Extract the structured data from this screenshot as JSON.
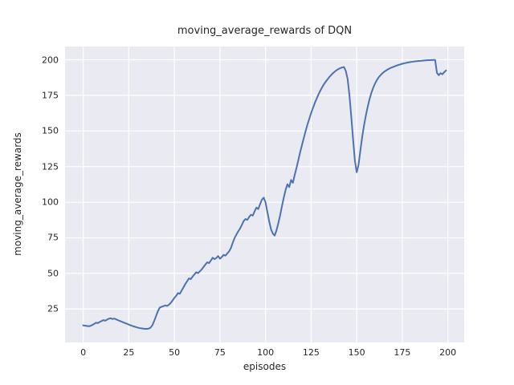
{
  "chart_data": {
    "type": "line",
    "title": "moving_average_rewards of DQN",
    "xlabel": "episodes",
    "ylabel": "moving_average_rewards",
    "x_start": 0,
    "x_step": 1,
    "values": [
      13.5,
      13.3,
      13.1,
      12.9,
      13.2,
      13.8,
      14.5,
      15.4,
      15.1,
      15.9,
      16.5,
      17.2,
      16.8,
      17.5,
      18.2,
      18.5,
      18.0,
      18.3,
      17.8,
      17.2,
      16.7,
      16.2,
      15.6,
      15.1,
      14.6,
      14.1,
      13.6,
      13.1,
      12.7,
      12.3,
      11.9,
      11.6,
      11.4,
      11.2,
      11.1,
      11.1,
      11.3,
      12.0,
      13.8,
      16.8,
      20.2,
      23.6,
      26.0,
      26.6,
      27.0,
      27.5,
      27.2,
      28.0,
      29.3,
      31.0,
      32.8,
      34.3,
      36.2,
      35.7,
      38.0,
      40.2,
      42.6,
      44.5,
      46.5,
      46.0,
      47.8,
      49.3,
      50.8,
      50.2,
      51.5,
      52.8,
      54.5,
      56.2,
      57.8,
      57.2,
      59.0,
      61.0,
      60.0,
      60.8,
      62.2,
      60.3,
      61.5,
      63.0,
      62.5,
      64.0,
      65.5,
      67.8,
      71.5,
      74.8,
      77.2,
      79.5,
      81.5,
      84.0,
      86.8,
      88.2,
      87.6,
      89.6,
      91.2,
      90.6,
      93.6,
      96.2,
      95.2,
      98.6,
      101.8,
      103.2,
      99.8,
      93.2,
      86.6,
      81.0,
      78.0,
      76.6,
      80.2,
      85.2,
      90.8,
      97.2,
      103.2,
      108.6,
      112.6,
      110.6,
      115.6,
      113.6,
      119.2,
      124.2,
      129.6,
      135.2,
      140.2,
      145.2,
      150.0,
      154.6,
      158.6,
      162.6,
      166.2,
      169.6,
      172.6,
      175.6,
      178.2,
      180.6,
      182.8,
      184.6,
      186.3,
      187.9,
      189.3,
      190.6,
      191.7,
      192.7,
      193.5,
      194.1,
      194.6,
      194.9,
      192.2,
      186.6,
      175.2,
      160.2,
      144.2,
      129.2,
      121.0,
      126.2,
      136.2,
      145.8,
      153.8,
      160.8,
      166.8,
      172.2,
      176.6,
      180.2,
      183.2,
      185.6,
      187.6,
      189.1,
      190.4,
      191.5,
      192.4,
      193.2,
      193.9,
      194.5,
      195.0,
      195.5,
      196.0,
      196.4,
      196.8,
      197.2,
      197.5,
      197.8,
      198.1,
      198.3,
      198.5,
      198.7,
      198.9,
      199.0,
      199.15,
      199.25,
      199.4,
      199.5,
      199.6,
      199.7,
      199.75,
      199.8,
      199.85,
      199.9,
      190.8,
      189.2,
      190.6,
      189.8,
      191.3,
      192.5
    ],
    "xticks": [
      0,
      25,
      50,
      75,
      100,
      125,
      150,
      175,
      200
    ],
    "yticks": [
      25,
      50,
      75,
      100,
      125,
      150,
      175,
      200
    ],
    "xlim": [
      -9.95,
      208.95
    ],
    "ylim": [
      1.5,
      209.3
    ],
    "grid": true,
    "legend": "none",
    "colors": {
      "line": "#4c72b0",
      "panel_background": "#eaeaf2",
      "grid": "#ffffff",
      "figure_background": "#ffffff",
      "text": "#262626"
    }
  }
}
